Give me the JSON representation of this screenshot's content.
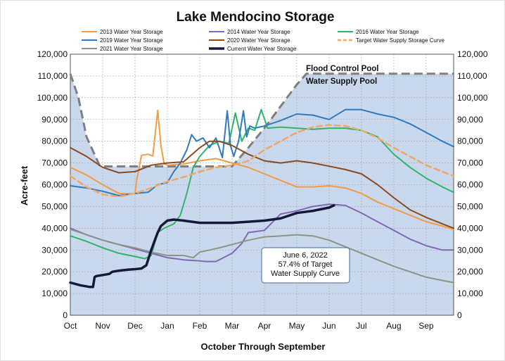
{
  "chart_data": {
    "type": "line",
    "title": "Lake Mendocino Storage",
    "xlabel": "October Through September",
    "ylabel": "Acre-feet",
    "x_ticks": [
      "Oct",
      "Nov",
      "Dec",
      "Jan",
      "Feb",
      "Mar",
      "Apr",
      "May",
      "Jun",
      "Jul",
      "Aug",
      "Sep"
    ],
    "xlim": [
      0,
      11.85
    ],
    "ylim": [
      0,
      120000
    ],
    "y_ticks": [
      "0",
      "10,000",
      "20,000",
      "30,000",
      "40,000",
      "50,000",
      "60,000",
      "70,000",
      "80,000",
      "90,000",
      "100,000",
      "110,000",
      "120,000"
    ],
    "y_tick_values": [
      0,
      10000,
      20000,
      30000,
      40000,
      50000,
      60000,
      70000,
      80000,
      90000,
      100000,
      110000,
      120000
    ],
    "grid": true,
    "legend_position": "top",
    "background_color": "#c9d8ec",
    "pool_labels": {
      "upper": "Flood Control Pool",
      "lower": "Water Supply Pool"
    },
    "annotation": {
      "lines": [
        "June 6, 2022",
        "57.4% of Target",
        "Water Supply Curve"
      ]
    },
    "flood_control_curve": {
      "name": "",
      "color": "#7f7f7f",
      "x": [
        0,
        0.25,
        0.5,
        0.9,
        1.0,
        2.0,
        3.0,
        3.5,
        4.0,
        4.5,
        5.0,
        5.5,
        6.0,
        6.5,
        7.0,
        7.3,
        8.0,
        9.0,
        10.0,
        11.0,
        11.85
      ],
      "y": [
        111000,
        100000,
        82000,
        69000,
        68400,
        68400,
        68400,
        68400,
        68400,
        68400,
        68400,
        77000,
        86000,
        96000,
        106000,
        111000,
        111000,
        111000,
        111000,
        111000,
        111000
      ]
    },
    "series": [
      {
        "name": "2013 Water Year Storage",
        "color": "#f39b45",
        "dash": false,
        "width": 2,
        "x": [
          0,
          0.5,
          1.0,
          1.5,
          2.0,
          2.05,
          2.2,
          2.4,
          2.55,
          2.7,
          2.8,
          2.9,
          3.0,
          3.5,
          4.0,
          4.5,
          5.0,
          5.5,
          6.0,
          6.5,
          7.0,
          7.5,
          8.0,
          8.5,
          9.0,
          9.5,
          10.0,
          10.5,
          11.0,
          11.5,
          11.85
        ],
        "y": [
          68000,
          64500,
          60000,
          56000,
          55800,
          62000,
          73500,
          74000,
          73200,
          94200,
          78000,
          69500,
          69000,
          69500,
          71000,
          72000,
          70000,
          68000,
          65000,
          62000,
          59000,
          59000,
          59500,
          58500,
          56000,
          52000,
          49000,
          46000,
          43000,
          41000,
          39500
        ]
      },
      {
        "name": "2014 Water Year Storage",
        "color": "#7f6ab2",
        "dash": false,
        "width": 2,
        "x": [
          0,
          0.5,
          1.0,
          1.5,
          2.0,
          2.5,
          3.0,
          3.5,
          4.0,
          4.2,
          4.5,
          5.0,
          5.3,
          5.5,
          6.0,
          6.5,
          7.0,
          7.5,
          8.0,
          8.5,
          9.0,
          9.5,
          10.0,
          10.5,
          11.0,
          11.5,
          11.85
        ],
        "y": [
          40000,
          37000,
          34500,
          32500,
          30500,
          28500,
          26500,
          25500,
          25000,
          24700,
          24700,
          28500,
          33000,
          38000,
          39000,
          46500,
          48000,
          50000,
          51000,
          50500,
          47000,
          43000,
          39000,
          35000,
          32000,
          30000,
          30000
        ]
      },
      {
        "name": "2016 Water Year Storage",
        "color": "#2fb56b",
        "dash": false,
        "width": 2,
        "x": [
          0,
          0.5,
          1.0,
          1.5,
          2.0,
          2.3,
          2.5,
          2.7,
          2.9,
          3.2,
          3.4,
          3.6,
          3.8,
          4.0,
          4.3,
          4.6,
          4.9,
          5.1,
          5.3,
          5.5,
          5.7,
          5.9,
          6.1,
          6.5,
          7.0,
          7.5,
          8.0,
          8.5,
          9.0,
          9.5,
          10.0,
          10.5,
          11.0,
          11.5,
          11.85
        ],
        "y": [
          36500,
          34000,
          31000,
          28500,
          27000,
          26000,
          27500,
          38000,
          40000,
          42000,
          46000,
          56000,
          68000,
          73000,
          78000,
          80000,
          79000,
          93000,
          80000,
          86000,
          85000,
          94500,
          86000,
          86500,
          86000,
          85500,
          86000,
          86000,
          85000,
          82000,
          74000,
          68000,
          63000,
          59000,
          56500
        ]
      },
      {
        "name": "2019 Water Year Storage",
        "color": "#2f7ac0",
        "dash": false,
        "width": 2,
        "x": [
          0,
          0.5,
          1.0,
          1.5,
          2.0,
          2.4,
          2.7,
          3.0,
          3.2,
          3.4,
          3.6,
          3.75,
          3.9,
          4.1,
          4.3,
          4.5,
          4.7,
          4.85,
          4.95,
          5.05,
          5.2,
          5.35,
          5.45,
          5.55,
          5.7,
          6.0,
          6.5,
          7.0,
          7.5,
          8.0,
          8.5,
          9.0,
          9.5,
          10.0,
          10.5,
          11.0,
          11.5,
          11.85
        ],
        "y": [
          59500,
          58500,
          57000,
          55000,
          56000,
          56500,
          60000,
          61000,
          66000,
          70000,
          76000,
          83000,
          80000,
          81500,
          77000,
          81500,
          72500,
          94000,
          78000,
          73000,
          80000,
          94000,
          82000,
          87000,
          86000,
          87000,
          89500,
          92500,
          92000,
          90000,
          94500,
          94500,
          92500,
          91000,
          88000,
          84000,
          80000,
          77500
        ]
      },
      {
        "name": "2020 Water Year Storage",
        "color": "#8a4a22",
        "dash": false,
        "width": 2,
        "x": [
          0,
          0.5,
          1.0,
          1.5,
          2.0,
          2.5,
          3.0,
          3.5,
          4.0,
          4.3,
          4.6,
          5.0,
          5.5,
          6.0,
          6.5,
          7.0,
          7.5,
          8.0,
          8.5,
          9.0,
          9.5,
          10.0,
          10.5,
          11.0,
          11.5,
          11.85
        ],
        "y": [
          77000,
          73000,
          68000,
          65500,
          66000,
          69000,
          70000,
          70500,
          77000,
          80000,
          80000,
          78000,
          74000,
          71000,
          70000,
          71000,
          70000,
          68500,
          67000,
          65000,
          60000,
          54000,
          48500,
          45000,
          42000,
          40000
        ]
      },
      {
        "name": "Target Water Supply Storage Curve",
        "color": "#f0a868",
        "dash": true,
        "width": 2.5,
        "x": [
          0,
          0.5,
          1.0,
          1.5,
          2.0,
          2.5,
          3.0,
          3.5,
          4.0,
          4.5,
          5.0,
          5.5,
          6.0,
          6.5,
          7.0,
          7.5,
          8.0,
          8.5,
          9.0,
          9.5,
          10.0,
          10.5,
          11.0,
          11.5,
          11.85
        ],
        "y": [
          64000,
          59000,
          55500,
          54500,
          56000,
          58500,
          61500,
          63500,
          66000,
          68000,
          69000,
          71000,
          76000,
          80000,
          84000,
          86500,
          87500,
          87000,
          85000,
          81500,
          77000,
          73000,
          69000,
          66000,
          64000
        ]
      },
      {
        "name": "2021 Water Year Storage",
        "color": "#8c9486",
        "dash": false,
        "width": 2,
        "x": [
          0,
          0.5,
          1.0,
          1.5,
          2.0,
          2.5,
          3.0,
          3.5,
          3.8,
          4.0,
          4.3,
          4.6,
          5.0,
          5.5,
          6.0,
          6.5,
          7.0,
          7.5,
          8.0,
          8.5,
          9.0,
          9.5,
          10.0,
          10.5,
          11.0,
          11.5,
          11.85
        ],
        "y": [
          39500,
          37000,
          34500,
          32500,
          31000,
          29000,
          27500,
          27500,
          26500,
          29000,
          30000,
          31000,
          32500,
          34500,
          36000,
          36500,
          37000,
          36500,
          34500,
          31500,
          28500,
          25500,
          22500,
          20000,
          17500,
          16000,
          15000
        ]
      },
      {
        "name": "Current Water Year Storage",
        "color": "#14193a",
        "dash": false,
        "width": 3.5,
        "x": [
          0,
          0.3,
          0.6,
          0.7,
          0.75,
          0.8,
          1.0,
          1.2,
          1.3,
          1.5,
          1.8,
          2.0,
          2.2,
          2.35,
          2.5,
          2.6,
          2.7,
          2.8,
          3.0,
          3.2,
          3.5,
          4.0,
          4.5,
          5.0,
          5.5,
          6.0,
          6.5,
          7.0,
          7.5,
          8.0,
          8.15
        ],
        "y": [
          15000,
          13800,
          13000,
          13000,
          17500,
          18000,
          18500,
          19000,
          20000,
          20500,
          21000,
          21200,
          21500,
          23000,
          30000,
          34000,
          38000,
          41000,
          43500,
          44000,
          43500,
          42500,
          42500,
          42500,
          43000,
          43500,
          44500,
          47000,
          48000,
          49500,
          50500
        ]
      }
    ]
  }
}
